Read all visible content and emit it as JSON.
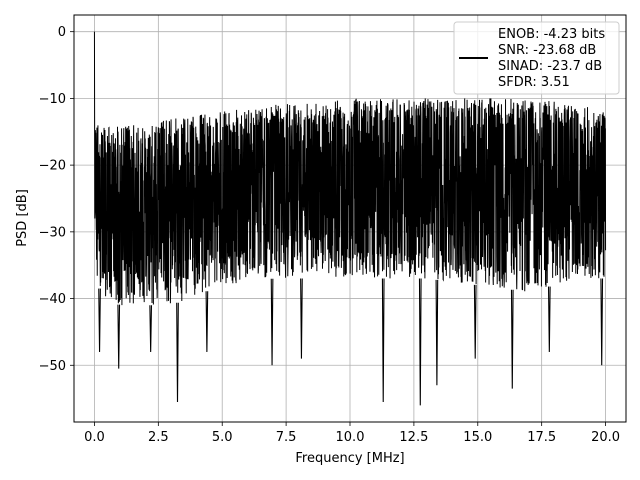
{
  "chart_data": {
    "type": "line",
    "title": "",
    "xlabel": "Frequency [MHz]",
    "ylabel": "PSD [dB]",
    "xlim": [
      -0.8,
      20.8
    ],
    "ylim": [
      -58.5,
      2.5
    ],
    "xticks": [
      0.0,
      2.5,
      5.0,
      7.5,
      10.0,
      12.5,
      15.0,
      17.5,
      20.0
    ],
    "xtick_labels": [
      "0.0",
      "2.5",
      "5.0",
      "7.5",
      "10.0",
      "12.5",
      "15.0",
      "17.5",
      "20.0"
    ],
    "yticks": [
      0,
      -10,
      -20,
      -30,
      -40,
      -50
    ],
    "ytick_labels": [
      "0",
      "−10",
      "−20",
      "−30",
      "−40",
      "−50"
    ],
    "grid": true,
    "legend_position": "top-right",
    "series": [
      {
        "name": "ENOB: -4.23 bits\nSNR: -23.68 dB\nSINAD: -23.7 dB\nSFDR: 3.51",
        "color": "#000000",
        "x_range": [
          0,
          20
        ],
        "dc_peak_db": 0,
        "envelope": {
          "x": [
            0,
            0.1,
            0.5,
            1,
            2,
            3,
            5,
            7,
            10,
            13,
            15,
            17,
            19,
            20
          ],
          "upper": [
            -12,
            -13,
            -14,
            -14,
            -14,
            -13,
            -12,
            -11,
            -10,
            -10,
            -10,
            -10,
            -11,
            -12
          ],
          "lower": [
            -34,
            -38,
            -40,
            -41,
            -41,
            -41,
            -38,
            -37,
            -37,
            -37,
            -38,
            -39,
            -37,
            -37
          ]
        },
        "deep_dips": [
          {
            "x": 0.2,
            "y": -48
          },
          {
            "x": 0.95,
            "y": -50.5
          },
          {
            "x": 2.2,
            "y": -48
          },
          {
            "x": 3.25,
            "y": -55.5
          },
          {
            "x": 4.4,
            "y": -48
          },
          {
            "x": 6.95,
            "y": -50
          },
          {
            "x": 8.1,
            "y": -49
          },
          {
            "x": 11.3,
            "y": -55.5
          },
          {
            "x": 12.75,
            "y": -56
          },
          {
            "x": 13.4,
            "y": -53
          },
          {
            "x": 14.9,
            "y": -49
          },
          {
            "x": 16.35,
            "y": -53.5
          },
          {
            "x": 17.8,
            "y": -48
          },
          {
            "x": 19.85,
            "y": -50
          }
        ]
      }
    ]
  }
}
